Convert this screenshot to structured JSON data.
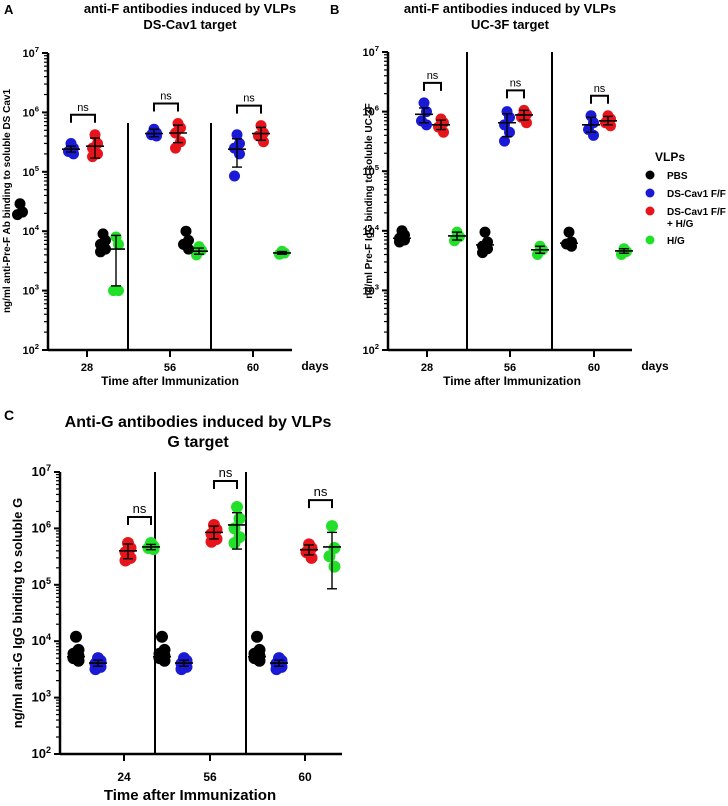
{
  "chart_data": [
    {
      "panel_label": "A",
      "type": "scatter",
      "title": [
        "anti-F antibodies induced by VLPs",
        "DS-Cav1 target"
      ],
      "xlabel": "Time after Immunization",
      "x_unit_label": "days",
      "ylabel": "ng/ml anti-Pre-F Ab binding to soluble DS Cav1",
      "yscale": "log",
      "ylim": [
        100,
        10000000
      ],
      "y_ticks": [
        {
          "base": "10",
          "exp": "2"
        },
        {
          "base": "10",
          "exp": "3"
        },
        {
          "base": "10",
          "exp": "4"
        },
        {
          "base": "10",
          "exp": "5"
        },
        {
          "base": "10",
          "exp": "6"
        },
        {
          "base": "10",
          "exp": "7"
        }
      ],
      "categories": [
        "28",
        "56",
        "60"
      ],
      "groups": [
        {
          "category": "28",
          "series": "PBS",
          "points": [
            29000,
            21000,
            19000
          ],
          "mean": null,
          "sd": null
        },
        {
          "category": "28",
          "series": "DS-Cav1 F/F",
          "points": [
            300000,
            250000,
            220000,
            200000
          ],
          "mean": 240000,
          "sd": [
            215000,
            270000
          ]
        },
        {
          "category": "28",
          "series": "DS-Cav1 F/F + H/G",
          "points": [
            420000,
            300000,
            250000,
            200000,
            180000
          ],
          "mean": 270000,
          "sd": [
            170000,
            370000
          ]
        },
        {
          "category": "28",
          "series": "H/G",
          "points": [
            8000,
            6000,
            1000,
            1000
          ],
          "mean": 5000,
          "sd": [
            1200,
            8500
          ]
        },
        {
          "category": "56",
          "series": "PBS",
          "points": [
            9000,
            7000,
            6000,
            5000,
            4500
          ],
          "mean": null,
          "sd": null
        },
        {
          "category": "56",
          "series": "DS-Cav1 F/F",
          "points": [
            520000,
            450000,
            420000,
            400000
          ],
          "mean": 440000,
          "sd": [
            390000,
            520000
          ]
        },
        {
          "category": "56",
          "series": "DS-Cav1 F/F + H/G",
          "points": [
            650000,
            550000,
            450000,
            320000,
            250000
          ],
          "mean": 450000,
          "sd": [
            310000,
            610000
          ]
        },
        {
          "category": "56",
          "series": "H/G",
          "points": [
            5500,
            4800,
            4000
          ],
          "mean": 4600,
          "sd": [
            4100,
            5200
          ]
        },
        {
          "category": "60",
          "series": "PBS",
          "points": [
            10000,
            7000,
            6000,
            5000
          ],
          "mean": null,
          "sd": null
        },
        {
          "category": "60",
          "series": "DS-Cav1 F/F",
          "points": [
            420000,
            300000,
            250000,
            200000,
            85000
          ],
          "mean": 240000,
          "sd": [
            120000,
            360000
          ]
        },
        {
          "category": "60",
          "series": "DS-Cav1 F/F + H/G",
          "points": [
            600000,
            450000,
            400000,
            320000
          ],
          "mean": 440000,
          "sd": [
            340000,
            560000
          ]
        },
        {
          "category": "60",
          "series": "H/G",
          "points": [
            4600,
            4300,
            4100
          ],
          "mean": 4300,
          "sd": [
            4100,
            4550
          ]
        }
      ],
      "significance": [
        {
          "category": "28",
          "between": [
            "DS-Cav1 F/F",
            "DS-Cav1 F/F + H/G"
          ],
          "label": "ns"
        },
        {
          "category": "56",
          "between": [
            "DS-Cav1 F/F",
            "DS-Cav1 F/F + H/G"
          ],
          "label": "ns"
        },
        {
          "category": "60",
          "between": [
            "DS-Cav1 F/F",
            "DS-Cav1 F/F + H/G"
          ],
          "label": "ns"
        }
      ]
    },
    {
      "panel_label": "B",
      "type": "scatter",
      "title": [
        "anti-F antibodies induced by VLPs",
        "UC-3F target"
      ],
      "xlabel": "Time after Immunization",
      "x_unit_label": "days",
      "ylabel": "ng/ml Pre-F IgG binding to soluble UC-3F",
      "yscale": "log",
      "ylim": [
        100,
        10000000
      ],
      "y_ticks": [
        {
          "base": "10",
          "exp": "2"
        },
        {
          "base": "10",
          "exp": "3"
        },
        {
          "base": "10",
          "exp": "4"
        },
        {
          "base": "10",
          "exp": "5"
        },
        {
          "base": "10",
          "exp": "6"
        },
        {
          "base": "10",
          "exp": "7"
        }
      ],
      "categories": [
        "28",
        "56",
        "60"
      ],
      "groups": [
        {
          "category": "28",
          "series": "PBS",
          "points": [
            10000,
            8500,
            7500,
            7000,
            6500
          ],
          "mean": 7500,
          "sd": null
        },
        {
          "category": "28",
          "series": "DS-Cav1 F/F",
          "points": [
            1400000,
            1000000,
            700000,
            600000
          ],
          "mean": 900000,
          "sd": [
            650000,
            1150000
          ]
        },
        {
          "category": "28",
          "series": "DS-Cav1 F/F + H/G",
          "points": [
            750000,
            650000,
            550000,
            450000
          ],
          "mean": 600000,
          "sd": [
            500000,
            720000
          ]
        },
        {
          "category": "28",
          "series": "H/G",
          "points": [
            9500,
            8000,
            6800
          ],
          "mean": 8200,
          "sd": [
            7000,
            9500
          ]
        },
        {
          "category": "56",
          "series": "PBS",
          "points": [
            9500,
            6500,
            5500,
            5000,
            4300
          ],
          "mean": 5800,
          "sd": null
        },
        {
          "category": "56",
          "series": "DS-Cav1 F/F",
          "points": [
            1000000,
            800000,
            600000,
            450000,
            320000
          ],
          "mean": 650000,
          "sd": [
            380000,
            920000
          ]
        },
        {
          "category": "56",
          "series": "DS-Cav1 F/F + H/G",
          "points": [
            1050000,
            900000,
            800000,
            650000
          ],
          "mean": 880000,
          "sd": [
            720000,
            1050000
          ]
        },
        {
          "category": "56",
          "series": "H/G",
          "points": [
            5500,
            4800,
            4000
          ],
          "mean": 4800,
          "sd": [
            4200,
            5500
          ]
        },
        {
          "category": "60",
          "series": "PBS",
          "points": [
            9500,
            6500,
            6000,
            5500
          ],
          "mean": 6200,
          "sd": null
        },
        {
          "category": "60",
          "series": "DS-Cav1 F/F",
          "points": [
            850000,
            650000,
            500000,
            400000
          ],
          "mean": 600000,
          "sd": [
            450000,
            800000
          ]
        },
        {
          "category": "60",
          "series": "DS-Cav1 F/F + H/G",
          "points": [
            850000,
            750000,
            650000,
            580000
          ],
          "mean": 700000,
          "sd": [
            600000,
            830000
          ]
        },
        {
          "category": "60",
          "series": "H/G",
          "points": [
            5000,
            4500,
            4000
          ],
          "mean": 4600,
          "sd": [
            4200,
            5000
          ]
        }
      ],
      "significance": [
        {
          "category": "28",
          "between": [
            "DS-Cav1 F/F",
            "DS-Cav1 F/F + H/G"
          ],
          "label": "ns"
        },
        {
          "category": "56",
          "between": [
            "DS-Cav1 F/F",
            "DS-Cav1 F/F + H/G"
          ],
          "label": "ns"
        },
        {
          "category": "60",
          "between": [
            "DS-Cav1 F/F",
            "DS-Cav1 F/F + H/G"
          ],
          "label": "ns"
        }
      ],
      "legend": {
        "title": "VLPs",
        "placement": "right",
        "entries": [
          {
            "label": [
              "PBS"
            ],
            "color": "#000000"
          },
          {
            "label": [
              "DS-Cav1 F/F"
            ],
            "color": "#1a1ad6"
          },
          {
            "label": [
              "DS-Cav1 F/F",
              "+ H/G"
            ],
            "color": "#e8141c"
          },
          {
            "label": [
              "H/G"
            ],
            "color": "#22e02a"
          }
        ]
      }
    },
    {
      "panel_label": "C",
      "type": "scatter",
      "title": [
        "Anti-G antibodies induced by VLPs",
        "G target"
      ],
      "xlabel": "Time after Immunization",
      "x_unit_label": "",
      "ylabel": "ng/ml anti-G IgG binding to soluble G",
      "yscale": "log",
      "ylim": [
        100,
        10000000
      ],
      "y_ticks": [
        {
          "base": "10",
          "exp": "2"
        },
        {
          "base": "10",
          "exp": "3"
        },
        {
          "base": "10",
          "exp": "4"
        },
        {
          "base": "10",
          "exp": "5"
        },
        {
          "base": "10",
          "exp": "6"
        },
        {
          "base": "10",
          "exp": "7"
        }
      ],
      "categories": [
        "24",
        "56",
        "60"
      ],
      "groups": [
        {
          "category": "24",
          "series": "PBS",
          "points": [
            12000,
            7000,
            6000,
            5500,
            5000,
            4500
          ],
          "mean": 5300,
          "sd": null
        },
        {
          "category": "24",
          "series": "DS-Cav1 F/F",
          "points": [
            5000,
            4500,
            4000,
            3500,
            3200
          ],
          "mean": 4100,
          "sd": [
            3600,
            4600
          ]
        },
        {
          "category": "24",
          "series": "DS-Cav1 F/F + H/G",
          "points": [
            550000,
            450000,
            380000,
            300000,
            270000
          ],
          "mean": 400000,
          "sd": [
            290000,
            530000
          ]
        },
        {
          "category": "24",
          "series": "H/G",
          "points": [
            550000,
            480000,
            450000,
            430000
          ],
          "mean": 470000,
          "sd": [
            420000,
            520000
          ]
        },
        {
          "category": "56",
          "series": "PBS",
          "points": [
            12000,
            7000,
            6000,
            5500,
            5000,
            4500
          ],
          "mean": 5300,
          "sd": null
        },
        {
          "category": "56",
          "series": "DS-Cav1 F/F",
          "points": [
            5000,
            4500,
            4000,
            3500,
            3200
          ],
          "mean": 4100,
          "sd": [
            3600,
            4600
          ]
        },
        {
          "category": "56",
          "series": "DS-Cav1 F/F + H/G",
          "points": [
            1150000,
            950000,
            800000,
            650000,
            580000
          ],
          "mean": 850000,
          "sd": [
            650000,
            1100000
          ]
        },
        {
          "category": "56",
          "series": "H/G",
          "points": [
            2400000,
            1500000,
            1000000,
            700000,
            550000
          ],
          "mean": 1150000,
          "sd": [
            430000,
            1900000
          ]
        },
        {
          "category": "60",
          "series": "PBS",
          "points": [
            12000,
            7000,
            6000,
            5500,
            5000,
            4500
          ],
          "mean": 5300,
          "sd": null
        },
        {
          "category": "60",
          "series": "DS-Cav1 F/F",
          "points": [
            5000,
            4500,
            4000,
            3500,
            3200
          ],
          "mean": 4100,
          "sd": [
            3600,
            4600
          ]
        },
        {
          "category": "60",
          "series": "DS-Cav1 F/F + H/G",
          "points": [
            520000,
            450000,
            380000,
            300000
          ],
          "mean": 420000,
          "sd": [
            340000,
            510000
          ]
        },
        {
          "category": "60",
          "series": "H/G",
          "points": [
            1100000,
            450000,
            320000,
            210000
          ],
          "mean": 470000,
          "sd": [
            85000,
            850000
          ]
        }
      ],
      "significance": [
        {
          "category": "24",
          "between": [
            "DS-Cav1 F/F + H/G",
            "H/G"
          ],
          "label": "ns"
        },
        {
          "category": "56",
          "between": [
            "DS-Cav1 F/F + H/G",
            "H/G"
          ],
          "label": "ns"
        },
        {
          "category": "60",
          "between": [
            "DS-Cav1 F/F + H/G",
            "H/G"
          ],
          "label": "ns"
        }
      ]
    }
  ],
  "series_colors": {
    "PBS": "#000000",
    "DS-Cav1 F/F": "#1a1ad6",
    "DS-Cav1 F/F + H/G": "#e8141c",
    "H/G": "#22e02a"
  }
}
